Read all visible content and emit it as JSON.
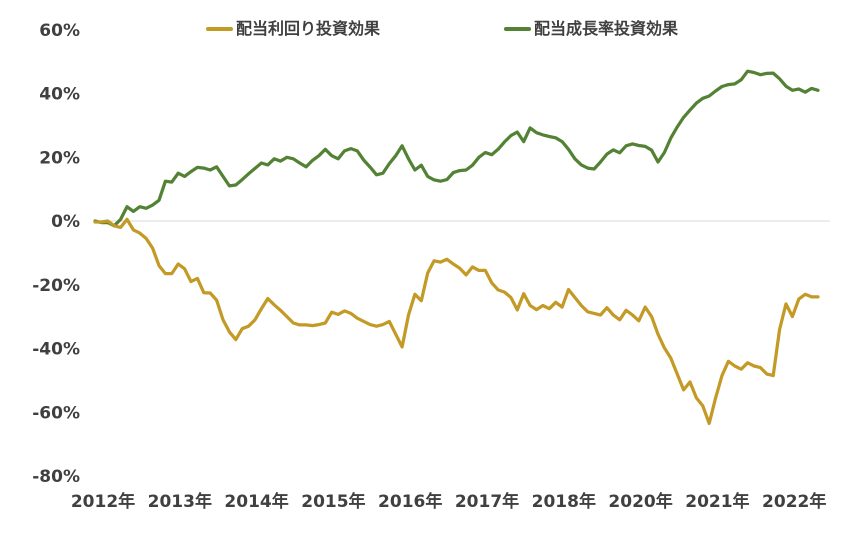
{
  "chart_data": {
    "type": "line",
    "title": "",
    "unit": "%",
    "legend_position": "top",
    "grid": "zero-line-only",
    "gridline_color": "#D9D9D9",
    "axis_text_color": "#404040",
    "background_color": "#FFFFFF",
    "x_axis": {
      "tick_labels": [
        "2012年",
        "2013年",
        "2014年",
        "2015年",
        "2016年",
        "2017年",
        "2018年",
        "2020年",
        "2021年",
        "2022年"
      ]
    },
    "y_axis": {
      "tick_labels": [
        "60%",
        "40%",
        "20%",
        "0%",
        "-20%",
        "-40%",
        "-60%",
        "-80%"
      ],
      "tick_values": [
        60,
        40,
        20,
        0,
        -20,
        -40,
        -60,
        -80
      ],
      "range": [
        -80,
        60
      ],
      "format": "percent"
    },
    "series": [
      {
        "name": "配当利回り投資効果",
        "color": "#C49A26",
        "values": [
          -0.3,
          -0.3,
          0.0,
          -1.5,
          -2.0,
          0.5,
          -2.8,
          -3.8,
          -5.5,
          -8.5,
          -14.0,
          -16.5,
          -16.5,
          -13.5,
          -15.0,
          -19.0,
          -18.0,
          -22.5,
          -22.6,
          -24.8,
          -31.0,
          -34.8,
          -37.2,
          -33.8,
          -33.0,
          -31.0,
          -27.5,
          -24.3,
          -26.3,
          -28.0,
          -30.0,
          -32.0,
          -32.6,
          -32.6,
          -32.8,
          -32.5,
          -32.0,
          -28.6,
          -29.3,
          -28.2,
          -29.0,
          -30.5,
          -31.5,
          -32.5,
          -33.0,
          -32.5,
          -31.5,
          -35.5,
          -39.5,
          -29.5,
          -23.0,
          -25.0,
          -16.3,
          -12.5,
          -12.9,
          -12.0,
          -13.5,
          -14.8,
          -16.9,
          -14.4,
          -15.5,
          -15.5,
          -19.4,
          -21.6,
          -22.3,
          -24.0,
          -27.9,
          -22.8,
          -26.5,
          -27.8,
          -26.5,
          -27.5,
          -25.5,
          -27.0,
          -21.5,
          -24.0,
          -26.5,
          -28.5,
          -29.0,
          -29.5,
          -27.2,
          -29.5,
          -31.0,
          -28.0,
          -29.5,
          -31.3,
          -27.0,
          -30.0,
          -35.5,
          -39.8,
          -43.0,
          -48.0,
          -53.0,
          -50.5,
          -55.5,
          -58.0,
          -63.5,
          -55.5,
          -48.5,
          -44.0,
          -45.5,
          -46.5,
          -44.5,
          -45.5,
          -46.0,
          -48.0,
          -48.5,
          -34.0,
          -26.0,
          -30.0,
          -24.5,
          -23.0,
          -23.8,
          -23.8
        ]
      },
      {
        "name": "配当成長率投資効果",
        "color": "#548235",
        "values": [
          0.0,
          -0.5,
          -0.5,
          -1.5,
          0.5,
          4.5,
          3.0,
          4.5,
          4.0,
          5.0,
          6.5,
          12.5,
          12.2,
          15.0,
          14.0,
          15.5,
          16.8,
          16.6,
          16.0,
          17.0,
          14.0,
          11.0,
          11.3,
          13.0,
          14.8,
          16.5,
          18.2,
          17.6,
          19.5,
          18.8,
          20.0,
          19.5,
          18.2,
          17.0,
          19.0,
          20.5,
          22.5,
          20.5,
          19.5,
          22.0,
          22.7,
          22.0,
          19.1,
          16.9,
          14.5,
          15.0,
          18.0,
          20.5,
          23.6,
          19.5,
          16.0,
          17.5,
          14.0,
          12.9,
          12.5,
          13.0,
          15.2,
          15.8,
          16.0,
          17.5,
          20.0,
          21.5,
          20.8,
          22.5,
          24.8,
          26.8,
          27.9,
          24.9,
          29.2,
          27.7,
          27.0,
          26.5,
          26.1,
          24.9,
          22.5,
          19.5,
          17.6,
          16.6,
          16.3,
          18.5,
          21.0,
          22.3,
          21.4,
          23.6,
          24.2,
          23.7,
          23.4,
          22.2,
          18.5,
          21.5,
          26.0,
          29.5,
          32.5,
          34.8,
          37.0,
          38.5,
          39.2,
          40.8,
          42.2,
          42.8,
          43.0,
          44.3,
          47.0,
          46.6,
          45.9,
          46.3,
          46.4,
          44.6,
          42.3,
          41.0,
          41.4,
          40.4,
          41.6,
          41.0
        ]
      }
    ]
  }
}
